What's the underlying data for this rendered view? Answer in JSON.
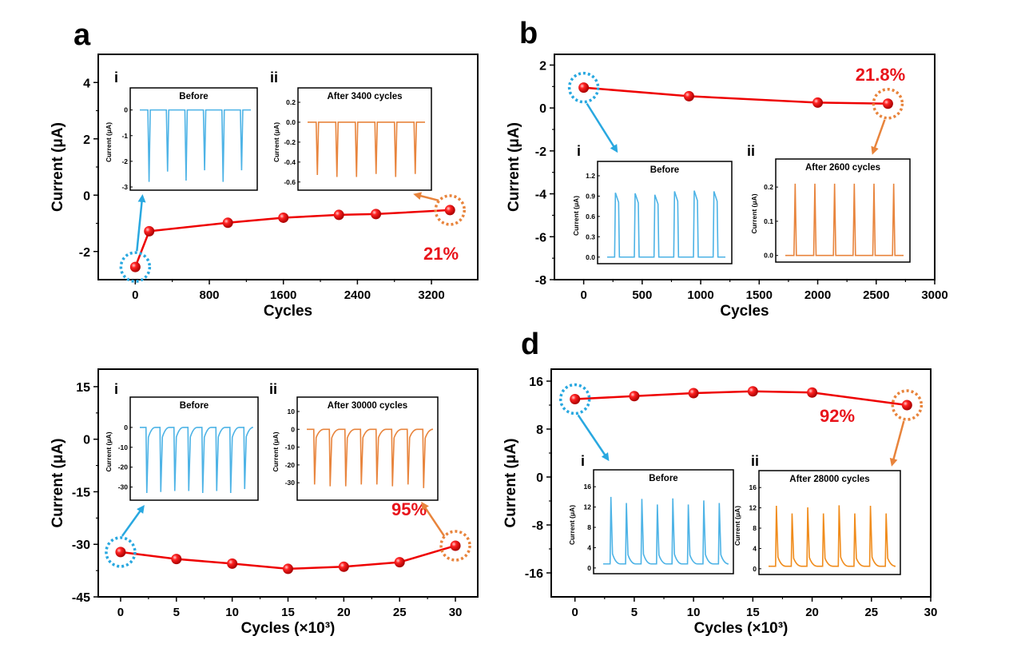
{
  "chart_data": [
    {
      "type": "line",
      "panel_label": "a",
      "xlabel": "Cycles",
      "ylabel": "Current (μA)",
      "xlim": [
        -400,
        3700
      ],
      "ylim": [
        -3,
        5
      ],
      "xticks": [
        0,
        800,
        1600,
        2400,
        3200
      ],
      "yticks": [
        -2,
        0,
        2,
        4
      ],
      "series": [
        {
          "name": "main",
          "x": [
            0,
            150,
            1000,
            1600,
            2200,
            2600,
            3400
          ],
          "y": [
            -2.55,
            -1.28,
            -0.98,
            -0.8,
            -0.7,
            -0.67,
            -0.53
          ]
        }
      ],
      "annotation": "21%",
      "start_circle_color": "#29a8e0",
      "end_circle_color": "#e8843c",
      "insets": [
        {
          "roman": "i",
          "title": "Before",
          "ylabel": "Current (μA)",
          "yticks": [
            "0",
            "-1",
            "-2",
            "-3"
          ],
          "ylim": [
            -3,
            0.3
          ],
          "color": "#4db3e6",
          "direction": "down",
          "baseline": 0,
          "peaks": [
            -2.8,
            -2.4,
            -2.75,
            -2.35,
            -2.8,
            -2.35
          ],
          "shape": "spike"
        },
        {
          "roman": "ii",
          "title": "After 3400 cycles",
          "ylabel": "Current (μA)",
          "yticks": [
            "0.2",
            "0.0",
            "-0.2",
            "-0.4",
            "-0.6"
          ],
          "ylim": [
            -0.65,
            0.2
          ],
          "color": "#e8843c",
          "direction": "down",
          "baseline": 0.0,
          "peaks": [
            -0.53,
            -0.55,
            -0.55,
            -0.52,
            -0.55,
            -0.52
          ],
          "shape": "spike"
        }
      ]
    },
    {
      "type": "line",
      "panel_label": "b",
      "xlabel": "Cycles",
      "ylabel": "Current (μA)",
      "xlim": [
        -250,
        3000
      ],
      "ylim": [
        -8,
        2.5
      ],
      "xticks": [
        0,
        500,
        1000,
        1500,
        2000,
        2500,
        3000
      ],
      "yticks": [
        -8,
        -6,
        -4,
        -2,
        0,
        2
      ],
      "series": [
        {
          "name": "main",
          "x": [
            0,
            900,
            2000,
            2600
          ],
          "y": [
            0.95,
            0.55,
            0.25,
            0.2
          ]
        }
      ],
      "annotation": "21.8%",
      "start_circle_color": "#29a8e0",
      "end_circle_color": "#e8843c",
      "insets": [
        {
          "roman": "i",
          "title": "Before",
          "ylabel": "Current (μA)",
          "yticks": [
            "1.2",
            "0.9",
            "0.6",
            "0.3",
            "0.0"
          ],
          "ylim": [
            -0.05,
            1.2
          ],
          "color": "#4db3e6",
          "direction": "up",
          "baseline": 0.0,
          "peaks": [
            0.95,
            0.94,
            0.92,
            0.97,
            0.98,
            0.97
          ],
          "shape": "square"
        },
        {
          "roman": "ii",
          "title": "After 2600 cycles",
          "ylabel": "Current (μA)",
          "yticks": [
            "0.2",
            "0.1",
            "0.0"
          ],
          "ylim": [
            -0.01,
            0.24
          ],
          "color": "#e8843c",
          "direction": "up",
          "baseline": 0.0,
          "peaks": [
            0.21,
            0.21,
            0.21,
            0.21,
            0.21,
            0.21
          ],
          "shape": "spike"
        }
      ]
    },
    {
      "type": "line",
      "panel_label": "",
      "xlabel": "Cycles (×10³)",
      "ylabel": "Current (μA)",
      "xlim": [
        -2,
        32
      ],
      "ylim": [
        -45,
        20
      ],
      "xticks": [
        0,
        5,
        10,
        15,
        20,
        25,
        30
      ],
      "yticks": [
        -45,
        -30,
        -15,
        0,
        15
      ],
      "series": [
        {
          "name": "main",
          "x": [
            0,
            5,
            10,
            15,
            20,
            25,
            30
          ],
          "y": [
            -32.2,
            -34.2,
            -35.5,
            -37,
            -36.4,
            -35.1,
            -30.4
          ]
        }
      ],
      "annotation": "95%",
      "start_circle_color": "#29a8e0",
      "end_circle_color": "#e8843c",
      "insets": [
        {
          "roman": "i",
          "title": "Before",
          "ylabel": "Current (μA)",
          "yticks": [
            "0",
            "-10",
            "-20",
            "-30"
          ],
          "ylim": [
            -35,
            8
          ],
          "color": "#4db3e6",
          "direction": "down",
          "baseline": 0,
          "peaks": [
            -33,
            -32.5,
            -32,
            -32,
            -33,
            -32,
            -33,
            -31
          ],
          "shape": "decay"
        },
        {
          "roman": "ii",
          "title": "After 30000 cycles",
          "ylabel": "Current (μA)",
          "yticks": [
            "10",
            "0",
            "-10",
            "-20",
            "-30"
          ],
          "ylim": [
            -38,
            10
          ],
          "color": "#e8843c",
          "direction": "down",
          "baseline": 0,
          "peaks": [
            -31,
            -32,
            -32,
            -31,
            -31,
            -32,
            -31,
            -33
          ],
          "shape": "decay"
        }
      ]
    },
    {
      "type": "line",
      "panel_label": "d",
      "xlabel": "Cycles (×10³)",
      "ylabel": "Current (μA)",
      "xlim": [
        -2,
        30
      ],
      "ylim": [
        -20,
        18
      ],
      "xticks": [
        0,
        5,
        10,
        15,
        20,
        25,
        30
      ],
      "yticks": [
        -16,
        -8,
        0,
        8,
        16
      ],
      "series": [
        {
          "name": "main",
          "x": [
            0,
            5,
            10,
            15,
            20,
            28
          ],
          "y": [
            13,
            13.5,
            14,
            14.3,
            14.1,
            12
          ]
        }
      ],
      "annotation": "92%",
      "start_circle_color": "#29a8e0",
      "end_circle_color": "#e8843c",
      "insets": [
        {
          "roman": "i",
          "title": "Before",
          "ylabel": "Current (μA)",
          "yticks": [
            "16",
            "12",
            "8",
            "4",
            "0"
          ],
          "ylim": [
            -0.5,
            16.5
          ],
          "color": "#4db3e6",
          "direction": "up",
          "baseline": 0.8,
          "peaks": [
            14,
            12.8,
            13.6,
            12.5,
            13.7,
            12.5,
            13.3,
            12.8
          ],
          "shape": "decay"
        },
        {
          "roman": "ii",
          "title": "After 28000 cycles",
          "ylabel": "Current (μA)",
          "yticks": [
            "16",
            "12",
            "8",
            "4",
            "0"
          ],
          "ylim": [
            -0.5,
            16.5
          ],
          "color": "#f08c1c",
          "direction": "up",
          "baseline": 0.5,
          "peaks": [
            12.4,
            10.9,
            12.1,
            10.9,
            12.5,
            10.9,
            12.4,
            10.9
          ],
          "shape": "decay"
        }
      ]
    }
  ]
}
